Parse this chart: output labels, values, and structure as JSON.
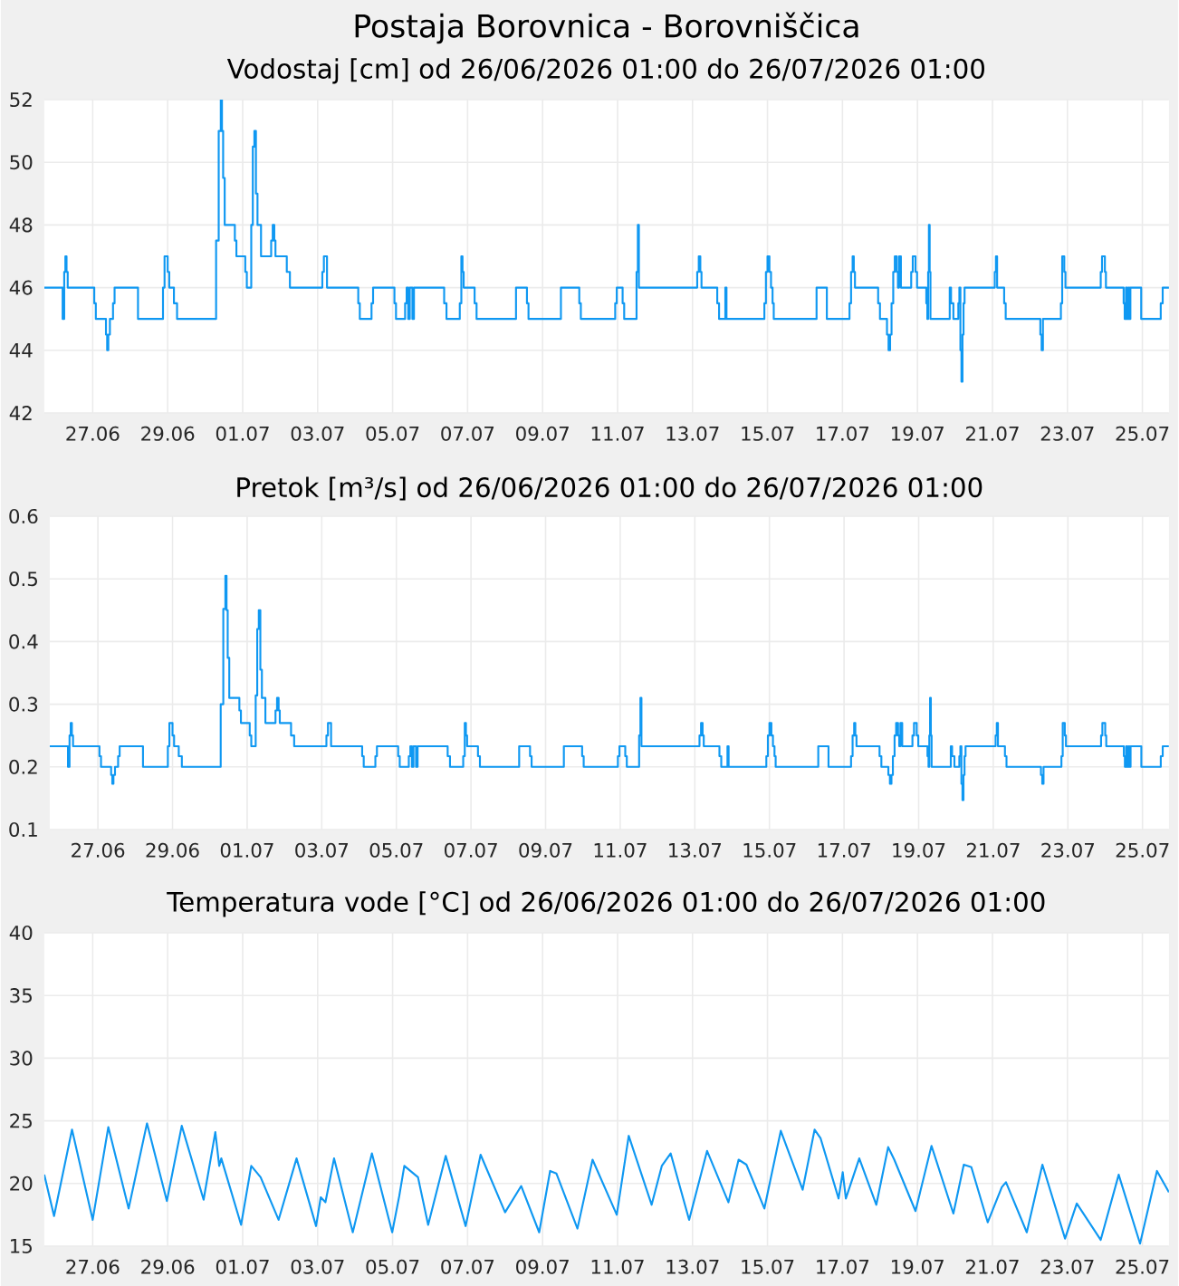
{
  "chart_data": [
    {
      "type": "step",
      "title": "Postaja Borovnica - Borovniščica",
      "subtitle": "Vodostaj [cm] od 26/06/2026 01:00 do 26/07/2026 01:00",
      "x": [
        "2026-06-26T01:00",
        "2026-06-26T12:45",
        "2026-06-26T13:45",
        "2026-06-26T14:30",
        "2026-06-26T15:15",
        "2026-06-26T16:00",
        "2026-06-27T09:00",
        "2026-06-27T10:00",
        "2026-06-27T16:30",
        "2026-06-27T17:15",
        "2026-06-27T18:00",
        "2026-06-27T19:00",
        "2026-06-27T21:00",
        "2026-06-27T22:00",
        "2026-06-28T13:00",
        "2026-06-29T05:00",
        "2026-06-29T06:00",
        "2026-06-29T08:00",
        "2026-06-29T09:00",
        "2026-06-29T12:00",
        "2026-06-29T14:00",
        "2026-06-30T15:00",
        "2026-06-30T16:40",
        "2026-06-30T18:00",
        "2026-06-30T18:45",
        "2026-06-30T19:30",
        "2026-06-30T20:30",
        "2026-07-01T03:00",
        "2026-07-01T04:00",
        "2026-07-01T09:40",
        "2026-07-01T10:40",
        "2026-07-01T13:30",
        "2026-07-01T14:30",
        "2026-07-01T15:30",
        "2026-07-01T16:30",
        "2026-07-01T17:30",
        "2026-07-01T19:45",
        "2026-07-02T02:15",
        "2026-07-02T03:15",
        "2026-07-02T04:15",
        "2026-07-02T05:00",
        "2026-07-02T12:15",
        "2026-07-02T14:15",
        "2026-07-03T11:00",
        "2026-07-03T12:00",
        "2026-07-03T14:00",
        "2026-07-04T10:00",
        "2026-07-04T11:00",
        "2026-07-04T18:30",
        "2026-07-04T19:30",
        "2026-07-05T09:10",
        "2026-07-05T10:10",
        "2026-07-05T16:00",
        "2026-07-05T17:00",
        "2026-07-05T18:00",
        "2026-07-05T19:00",
        "2026-07-05T20:40",
        "2026-07-05T21:40",
        "2026-07-06T17:00",
        "2026-07-06T18:30",
        "2026-07-07T03:00",
        "2026-07-07T04:00",
        "2026-07-07T04:45",
        "2026-07-07T05:30",
        "2026-07-07T12:30",
        "2026-07-07T13:45",
        "2026-07-08T15:00",
        "2026-07-08T22:00",
        "2026-07-08T23:00",
        "2026-07-09T19:45",
        "2026-07-10T07:30",
        "2026-07-10T08:30",
        "2026-07-11T06:30",
        "2026-07-11T07:30",
        "2026-07-11T11:15",
        "2026-07-11T12:15",
        "2026-07-11T20:10",
        "2026-07-11T21:00",
        "2026-07-11T21:40",
        "2026-07-13T11:00",
        "2026-07-13T12:00",
        "2026-07-13T13:00",
        "2026-07-13T13:45",
        "2026-07-13T23:50",
        "2026-07-14T01:00",
        "2026-07-14T05:00",
        "2026-07-14T05:45",
        "2026-07-15T06:00",
        "2026-07-15T07:00",
        "2026-07-15T08:00",
        "2026-07-15T09:15",
        "2026-07-15T10:15",
        "2026-07-15T11:15",
        "2026-07-15T12:00",
        "2026-07-16T15:25",
        "2026-07-16T22:00",
        "2026-07-17T12:30",
        "2026-07-17T13:30",
        "2026-07-17T14:30",
        "2026-07-17T15:15",
        "2026-07-17T16:00",
        "2026-07-18T06:50",
        "2026-07-18T08:00",
        "2026-07-18T12:30",
        "2026-07-18T13:30",
        "2026-07-18T14:30",
        "2026-07-18T15:25",
        "2026-07-18T16:30",
        "2026-07-18T17:30",
        "2026-07-18T18:45",
        "2026-07-18T19:30",
        "2026-07-18T20:15",
        "2026-07-18T21:25",
        "2026-07-19T04:00",
        "2026-07-19T05:00",
        "2026-07-19T06:45",
        "2026-07-19T07:45",
        "2026-07-19T13:40",
        "2026-07-19T14:20",
        "2026-07-19T14:50",
        "2026-07-19T15:20",
        "2026-07-19T15:50",
        "2026-07-19T16:20",
        "2026-07-20T04:40",
        "2026-07-20T05:30",
        "2026-07-20T07:00",
        "2026-07-20T10:10",
        "2026-07-20T10:50",
        "2026-07-20T11:30",
        "2026-07-20T12:10",
        "2026-07-20T12:50",
        "2026-07-20T13:30",
        "2026-07-20T14:10",
        "2026-07-21T09:30",
        "2026-07-21T10:15",
        "2026-07-21T11:00",
        "2026-07-21T15:30",
        "2026-07-21T16:30",
        "2026-07-22T14:40",
        "2026-07-22T15:30",
        "2026-07-22T16:20",
        "2026-07-23T03:50",
        "2026-07-23T04:40",
        "2026-07-23T06:00",
        "2026-07-23T06:45",
        "2026-07-24T05:20",
        "2026-07-24T06:10",
        "2026-07-24T08:00",
        "2026-07-24T08:40",
        "2026-07-24T20:00",
        "2026-07-24T20:40",
        "2026-07-24T21:30",
        "2026-07-24T22:20",
        "2026-07-24T23:10",
        "2026-07-24T23:40",
        "2026-07-25T00:20",
        "2026-07-25T07:15",
        "2026-07-25T19:45",
        "2026-07-25T21:00",
        "2026-07-26T01:00"
      ],
      "series": [
        {
          "color": "#0f98f2",
          "values": [
            46,
            45,
            46.5,
            47,
            46.5,
            46,
            45.5,
            45,
            44.5,
            44,
            44.5,
            45,
            45.5,
            46,
            45,
            46,
            47,
            46.5,
            46,
            45.5,
            45,
            47.5,
            51,
            52,
            51,
            49.5,
            48,
            47.5,
            47,
            46.5,
            46,
            48,
            50.5,
            51,
            49,
            48,
            47,
            47.5,
            48,
            47.5,
            47,
            46.5,
            46,
            46.5,
            47,
            46,
            45.5,
            45,
            45.5,
            46,
            45.5,
            45,
            45.5,
            46,
            45,
            46,
            45,
            46,
            45.5,
            45,
            45.5,
            47,
            46.5,
            46,
            45.5,
            45,
            46,
            45.5,
            45,
            46,
            45.5,
            45,
            45.5,
            46,
            45.5,
            45,
            46.5,
            48,
            46,
            46.5,
            47,
            46.5,
            46,
            45.5,
            45,
            46,
            45,
            45.5,
            46.5,
            47,
            46.5,
            46,
            45.5,
            45,
            46,
            45,
            45.5,
            46.5,
            47,
            46.5,
            46,
            45.5,
            45,
            44.5,
            44,
            44.5,
            45.5,
            46.5,
            47,
            46.5,
            46,
            47,
            46,
            46.5,
            47,
            46.5,
            46,
            45.5,
            45,
            46.5,
            48,
            46.5,
            45,
            46,
            45.5,
            45,
            45.5,
            46,
            44,
            43,
            44.5,
            45.5,
            46,
            46.5,
            47,
            46,
            45.5,
            45,
            44.5,
            44,
            45,
            45.5,
            47,
            46.5,
            46,
            46.5,
            47,
            46.5,
            46,
            45.5,
            45,
            46,
            45,
            46,
            45,
            46,
            45,
            45.5,
            46,
            46
          ]
        }
      ],
      "xlim": [
        "2026-06-26T01:00",
        "2026-07-26T01:00"
      ],
      "xticks": [
        {
          "value": "2026-06-27T08:00",
          "label": "27.06"
        },
        {
          "value": "2026-06-29T08:00",
          "label": "29.06"
        },
        {
          "value": "2026-07-01T08:00",
          "label": "01.07"
        },
        {
          "value": "2026-07-03T08:00",
          "label": "03.07"
        },
        {
          "value": "2026-07-05T08:00",
          "label": "05.07"
        },
        {
          "value": "2026-07-07T08:00",
          "label": "07.07"
        },
        {
          "value": "2026-07-09T08:00",
          "label": "09.07"
        },
        {
          "value": "2026-07-11T08:00",
          "label": "11.07"
        },
        {
          "value": "2026-07-13T08:00",
          "label": "13.07"
        },
        {
          "value": "2026-07-15T08:00",
          "label": "15.07"
        },
        {
          "value": "2026-07-17T08:00",
          "label": "17.07"
        },
        {
          "value": "2026-07-19T08:00",
          "label": "19.07"
        },
        {
          "value": "2026-07-21T08:00",
          "label": "21.07"
        },
        {
          "value": "2026-07-23T08:00",
          "label": "23.07"
        },
        {
          "value": "2026-07-25T08:00",
          "label": "25.07"
        }
      ],
      "ylim": [
        42,
        52
      ],
      "yticks": [
        42,
        44,
        46,
        48,
        50,
        52
      ],
      "grid": true,
      "marker": "none",
      "line_style": "solid"
    },
    {
      "type": "step",
      "title": "Pretok [m³/s] od 26/06/2026 01:00 do 26/07/2026 01:00",
      "x": [
        "2026-06-26T01:00",
        "2026-06-26T12:45",
        "2026-06-26T13:45",
        "2026-06-26T14:30",
        "2026-06-26T15:15",
        "2026-06-26T16:00",
        "2026-06-27T09:00",
        "2026-06-27T10:00",
        "2026-06-27T16:30",
        "2026-06-27T17:15",
        "2026-06-27T18:00",
        "2026-06-27T19:00",
        "2026-06-27T21:00",
        "2026-06-27T22:00",
        "2026-06-28T13:00",
        "2026-06-29T05:00",
        "2026-06-29T06:00",
        "2026-06-29T08:00",
        "2026-06-29T09:00",
        "2026-06-29T12:00",
        "2026-06-29T14:00",
        "2026-06-30T15:00",
        "2026-06-30T16:40",
        "2026-06-30T18:00",
        "2026-06-30T18:45",
        "2026-06-30T19:30",
        "2026-06-30T20:30",
        "2026-07-01T03:00",
        "2026-07-01T04:00",
        "2026-07-01T09:40",
        "2026-07-01T10:40",
        "2026-07-01T13:30",
        "2026-07-01T14:30",
        "2026-07-01T15:30",
        "2026-07-01T16:30",
        "2026-07-01T17:30",
        "2026-07-01T19:45",
        "2026-07-02T02:15",
        "2026-07-02T03:15",
        "2026-07-02T04:15",
        "2026-07-02T05:00",
        "2026-07-02T12:15",
        "2026-07-02T14:15",
        "2026-07-03T11:00",
        "2026-07-03T12:00",
        "2026-07-03T14:00",
        "2026-07-04T10:00",
        "2026-07-04T11:00",
        "2026-07-04T18:30",
        "2026-07-04T19:30",
        "2026-07-05T09:10",
        "2026-07-05T10:10",
        "2026-07-05T16:00",
        "2026-07-05T17:00",
        "2026-07-05T18:00",
        "2026-07-05T19:00",
        "2026-07-05T20:40",
        "2026-07-05T21:40",
        "2026-07-06T17:00",
        "2026-07-06T18:30",
        "2026-07-07T03:00",
        "2026-07-07T04:00",
        "2026-07-07T04:45",
        "2026-07-07T05:30",
        "2026-07-07T12:30",
        "2026-07-07T13:45",
        "2026-07-08T15:00",
        "2026-07-08T22:00",
        "2026-07-08T23:00",
        "2026-07-09T19:45",
        "2026-07-10T07:30",
        "2026-07-10T08:30",
        "2026-07-11T06:30",
        "2026-07-11T07:30",
        "2026-07-11T11:15",
        "2026-07-11T12:15",
        "2026-07-11T20:10",
        "2026-07-11T21:00",
        "2026-07-11T21:40",
        "2026-07-13T11:00",
        "2026-07-13T12:00",
        "2026-07-13T13:00",
        "2026-07-13T13:45",
        "2026-07-13T23:50",
        "2026-07-14T01:00",
        "2026-07-14T05:00",
        "2026-07-14T05:45",
        "2026-07-15T06:00",
        "2026-07-15T07:00",
        "2026-07-15T08:00",
        "2026-07-15T09:15",
        "2026-07-15T10:15",
        "2026-07-15T11:15",
        "2026-07-15T12:00",
        "2026-07-16T15:25",
        "2026-07-16T22:00",
        "2026-07-17T12:30",
        "2026-07-17T13:30",
        "2026-07-17T14:30",
        "2026-07-17T15:15",
        "2026-07-17T16:00",
        "2026-07-18T06:50",
        "2026-07-18T08:00",
        "2026-07-18T12:30",
        "2026-07-18T13:30",
        "2026-07-18T14:30",
        "2026-07-18T15:25",
        "2026-07-18T16:30",
        "2026-07-18T17:30",
        "2026-07-18T18:45",
        "2026-07-18T19:30",
        "2026-07-18T20:15",
        "2026-07-18T21:25",
        "2026-07-19T04:00",
        "2026-07-19T05:00",
        "2026-07-19T06:45",
        "2026-07-19T07:45",
        "2026-07-19T13:40",
        "2026-07-19T14:20",
        "2026-07-19T14:50",
        "2026-07-19T15:20",
        "2026-07-19T15:50",
        "2026-07-19T16:20",
        "2026-07-20T04:40",
        "2026-07-20T05:30",
        "2026-07-20T07:00",
        "2026-07-20T10:10",
        "2026-07-20T10:50",
        "2026-07-20T11:30",
        "2026-07-20T12:10",
        "2026-07-20T12:50",
        "2026-07-20T13:30",
        "2026-07-20T14:10",
        "2026-07-21T09:30",
        "2026-07-21T10:15",
        "2026-07-21T11:00",
        "2026-07-21T15:30",
        "2026-07-21T16:30",
        "2026-07-22T14:40",
        "2026-07-22T15:30",
        "2026-07-22T16:20",
        "2026-07-23T03:50",
        "2026-07-23T04:40",
        "2026-07-23T06:00",
        "2026-07-23T06:45",
        "2026-07-24T05:20",
        "2026-07-24T06:10",
        "2026-07-24T08:00",
        "2026-07-24T08:40",
        "2026-07-24T20:00",
        "2026-07-24T20:40",
        "2026-07-24T21:30",
        "2026-07-24T22:20",
        "2026-07-24T23:10",
        "2026-07-24T23:40",
        "2026-07-25T00:20",
        "2026-07-25T07:15",
        "2026-07-25T19:45",
        "2026-07-25T21:00",
        "2026-07-26T01:00"
      ],
      "series": [
        {
          "color": "#0f98f2",
          "values": [
            0.233,
            0.2,
            0.25,
            0.27,
            0.25,
            0.233,
            0.217,
            0.2,
            0.187,
            0.173,
            0.187,
            0.2,
            0.217,
            0.233,
            0.2,
            0.233,
            0.27,
            0.25,
            0.233,
            0.217,
            0.2,
            0.3,
            0.452,
            0.505,
            0.45,
            0.374,
            0.31,
            0.29,
            0.27,
            0.25,
            0.233,
            0.314,
            0.42,
            0.45,
            0.355,
            0.31,
            0.27,
            0.29,
            0.31,
            0.29,
            0.27,
            0.25,
            0.233,
            0.25,
            0.27,
            0.233,
            0.217,
            0.2,
            0.217,
            0.233,
            0.217,
            0.2,
            0.217,
            0.233,
            0.2,
            0.233,
            0.2,
            0.233,
            0.217,
            0.2,
            0.217,
            0.27,
            0.25,
            0.233,
            0.217,
            0.2,
            0.233,
            0.217,
            0.2,
            0.233,
            0.217,
            0.2,
            0.217,
            0.233,
            0.217,
            0.2,
            0.25,
            0.31,
            0.233,
            0.25,
            0.27,
            0.25,
            0.233,
            0.217,
            0.2,
            0.233,
            0.2,
            0.217,
            0.25,
            0.27,
            0.25,
            0.233,
            0.217,
            0.2,
            0.233,
            0.2,
            0.217,
            0.25,
            0.27,
            0.25,
            0.233,
            0.217,
            0.2,
            0.187,
            0.173,
            0.187,
            0.217,
            0.25,
            0.27,
            0.25,
            0.233,
            0.27,
            0.233,
            0.25,
            0.27,
            0.25,
            0.233,
            0.217,
            0.2,
            0.25,
            0.31,
            0.25,
            0.2,
            0.233,
            0.217,
            0.2,
            0.217,
            0.233,
            0.173,
            0.147,
            0.187,
            0.217,
            0.233,
            0.25,
            0.27,
            0.233,
            0.217,
            0.2,
            0.187,
            0.173,
            0.2,
            0.217,
            0.27,
            0.25,
            0.233,
            0.25,
            0.27,
            0.25,
            0.233,
            0.217,
            0.2,
            0.233,
            0.2,
            0.233,
            0.2,
            0.233,
            0.2,
            0.217,
            0.233,
            0.233
          ]
        }
      ],
      "xlim": [
        "2026-06-26T01:00",
        "2026-07-26T01:00"
      ],
      "xticks": [
        {
          "value": "2026-06-27T08:00",
          "label": "27.06"
        },
        {
          "value": "2026-06-29T08:00",
          "label": "29.06"
        },
        {
          "value": "2026-07-01T08:00",
          "label": "01.07"
        },
        {
          "value": "2026-07-03T08:00",
          "label": "03.07"
        },
        {
          "value": "2026-07-05T08:00",
          "label": "05.07"
        },
        {
          "value": "2026-07-07T08:00",
          "label": "07.07"
        },
        {
          "value": "2026-07-09T08:00",
          "label": "09.07"
        },
        {
          "value": "2026-07-11T08:00",
          "label": "11.07"
        },
        {
          "value": "2026-07-13T08:00",
          "label": "13.07"
        },
        {
          "value": "2026-07-15T08:00",
          "label": "15.07"
        },
        {
          "value": "2026-07-17T08:00",
          "label": "17.07"
        },
        {
          "value": "2026-07-19T08:00",
          "label": "19.07"
        },
        {
          "value": "2026-07-21T08:00",
          "label": "21.07"
        },
        {
          "value": "2026-07-23T08:00",
          "label": "23.07"
        },
        {
          "value": "2026-07-25T08:00",
          "label": "25.07"
        }
      ],
      "ylim": [
        0.1,
        0.6
      ],
      "yticks": [
        0.1,
        0.2,
        0.3,
        0.4,
        0.5,
        0.6
      ],
      "grid": true,
      "marker": "none",
      "line_style": "solid"
    },
    {
      "type": "line",
      "title": "Temperatura vode [°C] od 26/06/2026 01:00 do 26/07/2026 01:00",
      "x": [
        "2026-06-26T01:00",
        "2026-06-26T07:15",
        "2026-06-26T18:45",
        "2026-06-27T08:00",
        "2026-06-27T18:00",
        "2026-06-28T07:00",
        "2026-06-28T18:45",
        "2026-06-29T07:30",
        "2026-06-29T17:00",
        "2026-06-30T07:00",
        "2026-06-30T14:30",
        "2026-06-30T17:00",
        "2026-06-30T18:20",
        "2026-07-01T07:00",
        "2026-07-01T13:30",
        "2026-07-01T19:30",
        "2026-07-02T07:00",
        "2026-07-02T18:30",
        "2026-07-03T07:00",
        "2026-07-03T10:00",
        "2026-07-03T13:00",
        "2026-07-03T18:30",
        "2026-07-04T06:30",
        "2026-07-04T18:45",
        "2026-07-05T07:45",
        "2026-07-05T12:15",
        "2026-07-05T15:30",
        "2026-07-06T00:15",
        "2026-07-06T06:45",
        "2026-07-06T18:00",
        "2026-07-07T06:45",
        "2026-07-07T16:20",
        "2026-07-08T08:00",
        "2026-07-08T18:20",
        "2026-07-09T05:50",
        "2026-07-09T12:50",
        "2026-07-09T16:50",
        "2026-07-10T06:20",
        "2026-07-10T16:00",
        "2026-07-11T07:30",
        "2026-07-11T15:10",
        "2026-07-12T05:50",
        "2026-07-12T12:20",
        "2026-07-12T18:00",
        "2026-07-13T05:50",
        "2026-07-13T17:20",
        "2026-07-14T07:00",
        "2026-07-14T13:30",
        "2026-07-14T18:30",
        "2026-07-15T06:00",
        "2026-07-15T16:30",
        "2026-07-16T06:30",
        "2026-07-16T14:10",
        "2026-07-16T18:00",
        "2026-07-17T05:30",
        "2026-07-17T08:10",
        "2026-07-17T10:10",
        "2026-07-17T18:45",
        "2026-07-18T05:40",
        "2026-07-18T13:15",
        "2026-07-18T17:10",
        "2026-07-19T06:45",
        "2026-07-19T17:00",
        "2026-07-20T07:00",
        "2026-07-20T13:40",
        "2026-07-20T18:30",
        "2026-07-21T05:00",
        "2026-07-21T14:00",
        "2026-07-21T16:40",
        "2026-07-22T06:00",
        "2026-07-22T16:00",
        "2026-07-23T06:30",
        "2026-07-23T14:00",
        "2026-07-24T05:20",
        "2026-07-24T16:50",
        "2026-07-25T06:30",
        "2026-07-25T17:20",
        "2026-07-26T01:00"
      ],
      "series": [
        {
          "color": "#0f98f2",
          "values": [
            20.7,
            17.4,
            24.3,
            17.1,
            24.5,
            18.0,
            24.8,
            18.6,
            24.6,
            18.7,
            24.1,
            21.4,
            22.0,
            16.7,
            21.4,
            20.5,
            17.1,
            22.0,
            16.6,
            18.9,
            18.5,
            22.0,
            16.1,
            22.4,
            16.1,
            19.0,
            21.4,
            20.5,
            16.7,
            22.2,
            16.6,
            22.3,
            17.7,
            19.8,
            16.1,
            21.0,
            20.8,
            16.4,
            21.9,
            17.5,
            23.8,
            18.3,
            21.4,
            22.4,
            17.1,
            22.6,
            18.5,
            21.9,
            21.5,
            18.0,
            24.2,
            19.5,
            24.3,
            23.6,
            18.8,
            20.9,
            18.8,
            22.0,
            18.3,
            22.9,
            21.9,
            17.8,
            23.0,
            17.6,
            21.5,
            21.3,
            16.9,
            19.7,
            20.1,
            16.1,
            21.5,
            15.6,
            18.4,
            15.5,
            20.7,
            15.2,
            21.0,
            19.3
          ]
        }
      ],
      "xlim": [
        "2026-06-26T01:00",
        "2026-07-26T01:00"
      ],
      "xticks": [
        {
          "value": "2026-06-27T08:00",
          "label": "27.06"
        },
        {
          "value": "2026-06-29T08:00",
          "label": "29.06"
        },
        {
          "value": "2026-07-01T08:00",
          "label": "01.07"
        },
        {
          "value": "2026-07-03T08:00",
          "label": "03.07"
        },
        {
          "value": "2026-07-05T08:00",
          "label": "05.07"
        },
        {
          "value": "2026-07-07T08:00",
          "label": "07.07"
        },
        {
          "value": "2026-07-09T08:00",
          "label": "09.07"
        },
        {
          "value": "2026-07-11T08:00",
          "label": "11.07"
        },
        {
          "value": "2026-07-13T08:00",
          "label": "13.07"
        },
        {
          "value": "2026-07-15T08:00",
          "label": "15.07"
        },
        {
          "value": "2026-07-17T08:00",
          "label": "17.07"
        },
        {
          "value": "2026-07-19T08:00",
          "label": "19.07"
        },
        {
          "value": "2026-07-21T08:00",
          "label": "21.07"
        },
        {
          "value": "2026-07-23T08:00",
          "label": "23.07"
        },
        {
          "value": "2026-07-25T08:00",
          "label": "25.07"
        }
      ],
      "ylim": [
        15,
        40
      ],
      "yticks": [
        15,
        20,
        25,
        30,
        35,
        40
      ],
      "grid": true,
      "marker": "none",
      "line_style": "solid"
    }
  ]
}
